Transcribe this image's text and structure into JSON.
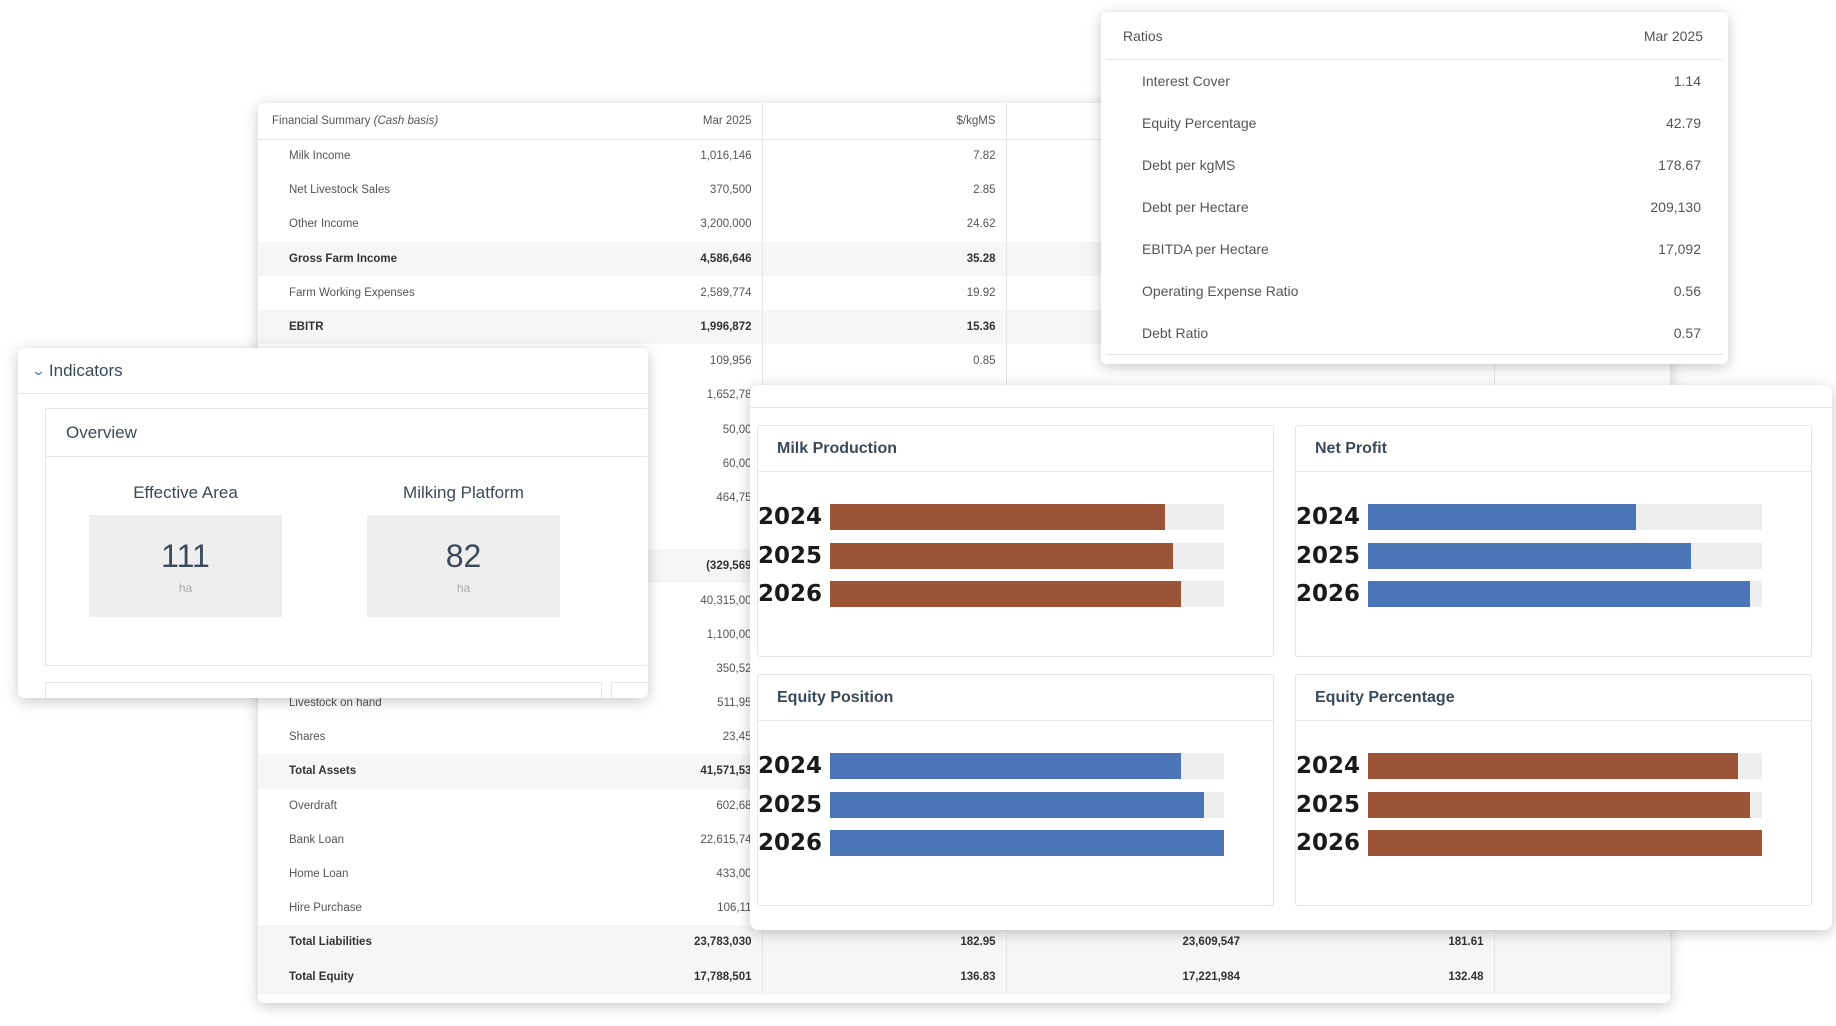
{
  "financial": {
    "title": "Financial Summary",
    "basis": "(Cash basis)",
    "columns": [
      "Mar 2025",
      "$/kgMS"
    ],
    "rows": [
      {
        "label": "Milk Income",
        "v1": "1,016,146",
        "v2": "7.82",
        "v3": "",
        "v4": "",
        "bold": false
      },
      {
        "label": "Net Livestock Sales",
        "v1": "370,500",
        "v2": "2.85",
        "v3": "",
        "v4": "",
        "bold": false
      },
      {
        "label": "Other Income",
        "v1": "3,200,000",
        "v2": "24.62",
        "v3": "",
        "v4": "",
        "bold": false
      },
      {
        "label": "Gross Farm Income",
        "v1": "4,586,646",
        "v2": "35.28",
        "v3": "",
        "v4": "",
        "bold": true
      },
      {
        "label": "Farm Working Expenses",
        "v1": "2,589,774",
        "v2": "19.92",
        "v3": "",
        "v4": "",
        "bold": false
      },
      {
        "label": "EBITR",
        "v1": "1,996,872",
        "v2": "15.36",
        "v3": "",
        "v4": "",
        "bold": true
      },
      {
        "label": "",
        "v1": "109,956",
        "v2": "0.85",
        "v3": "",
        "v4": "",
        "bold": false
      },
      {
        "label": "",
        "v1": "1,652,78",
        "v2": "",
        "v3": "",
        "v4": "",
        "bold": false
      },
      {
        "label": "",
        "v1": "50,00",
        "v2": "",
        "v3": "",
        "v4": "",
        "bold": false
      },
      {
        "label": "",
        "v1": "60,00",
        "v2": "",
        "v3": "",
        "v4": "",
        "bold": false
      },
      {
        "label": "",
        "v1": "464,75",
        "v2": "",
        "v3": "",
        "v4": "",
        "bold": false
      },
      {
        "label": "",
        "v1": "",
        "v2": "",
        "v3": "",
        "v4": "",
        "bold": false
      },
      {
        "label": "",
        "v1": "(329,569",
        "v2": "",
        "v3": "",
        "v4": "",
        "bold": true
      },
      {
        "label": "",
        "v1": "40,315,00",
        "v2": "",
        "v3": "",
        "v4": "",
        "bold": false
      },
      {
        "label": "",
        "v1": "1,100,00",
        "v2": "",
        "v3": "",
        "v4": "",
        "bold": false
      },
      {
        "label": "",
        "v1": "350,52",
        "v2": "",
        "v3": "",
        "v4": "",
        "bold": false
      },
      {
        "label": "Livestock on hand",
        "v1": "511,95",
        "v2": "",
        "v3": "",
        "v4": "",
        "bold": false
      },
      {
        "label": "Shares",
        "v1": "23,45",
        "v2": "",
        "v3": "",
        "v4": "",
        "bold": false
      },
      {
        "label": "Total Assets",
        "v1": "41,571,53",
        "v2": "",
        "v3": "",
        "v4": "",
        "bold": true
      },
      {
        "label": "Overdraft",
        "v1": "602,68",
        "v2": "",
        "v3": "",
        "v4": "",
        "bold": false
      },
      {
        "label": "Bank Loan",
        "v1": "22,615,74",
        "v2": "",
        "v3": "",
        "v4": "",
        "bold": false
      },
      {
        "label": "Home Loan",
        "v1": "433,00",
        "v2": "",
        "v3": "",
        "v4": "",
        "bold": false
      },
      {
        "label": "Hire Purchase",
        "v1": "106,11",
        "v2": "",
        "v3": "",
        "v4": "",
        "bold": false
      },
      {
        "label": "Total Liabilities",
        "v1": "23,783,030",
        "v2": "182.95",
        "v3": "23,609,547",
        "v4": "181.61",
        "bold": true
      },
      {
        "label": "Total Equity",
        "v1": "17,788,501",
        "v2": "136.83",
        "v3": "17,221,984",
        "v4": "132.48",
        "bold": true
      }
    ]
  },
  "ratios": {
    "title": "Ratios",
    "period": "Mar 2025",
    "rows": [
      {
        "label": "Interest Cover",
        "value": "1.14"
      },
      {
        "label": "Equity Percentage",
        "value": "42.79"
      },
      {
        "label": "Debt per kgMS",
        "value": "178.67"
      },
      {
        "label": "Debt per Hectare",
        "value": "209,130"
      },
      {
        "label": "EBITDA per Hectare",
        "value": "17,092"
      },
      {
        "label": "Operating Expense Ratio",
        "value": "0.56"
      },
      {
        "label": "Debt Ratio",
        "value": "0.57"
      }
    ]
  },
  "indicators": {
    "title": "Indicators",
    "chevron_icon": "chevron-down-icon",
    "overview": {
      "title": "Overview",
      "metrics": [
        {
          "label": "Effective Area",
          "value": "111",
          "unit": "ha"
        },
        {
          "label": "Milking Platform",
          "value": "82",
          "unit": "ha"
        }
      ]
    }
  },
  "colors": {
    "brown": "#9b5536",
    "blue": "#4a76b8",
    "track": "#eeeeee"
  },
  "chart_data": [
    {
      "type": "bar",
      "title": "Milk Production",
      "orientation": "horizontal",
      "categories": [
        "2024",
        "2025",
        "2026"
      ],
      "values": [
        0.85,
        0.87,
        0.89
      ],
      "value_scale": "fraction of track",
      "color": "#9b5536"
    },
    {
      "type": "bar",
      "title": "Net Profit",
      "orientation": "horizontal",
      "categories": [
        "2024",
        "2025",
        "2026"
      ],
      "values": [
        0.68,
        0.82,
        0.97
      ],
      "value_scale": "fraction of track",
      "color": "#4a76b8"
    },
    {
      "type": "bar",
      "title": "Equity Position",
      "orientation": "horizontal",
      "categories": [
        "2024",
        "2025",
        "2026"
      ],
      "values": [
        0.89,
        0.95,
        1.0
      ],
      "value_scale": "fraction of track",
      "color": "#4a76b8"
    },
    {
      "type": "bar",
      "title": "Equity Percentage",
      "orientation": "horizontal",
      "categories": [
        "2024",
        "2025",
        "2026"
      ],
      "values": [
        0.94,
        0.97,
        1.0
      ],
      "value_scale": "fraction of track",
      "color": "#9b5536"
    }
  ]
}
